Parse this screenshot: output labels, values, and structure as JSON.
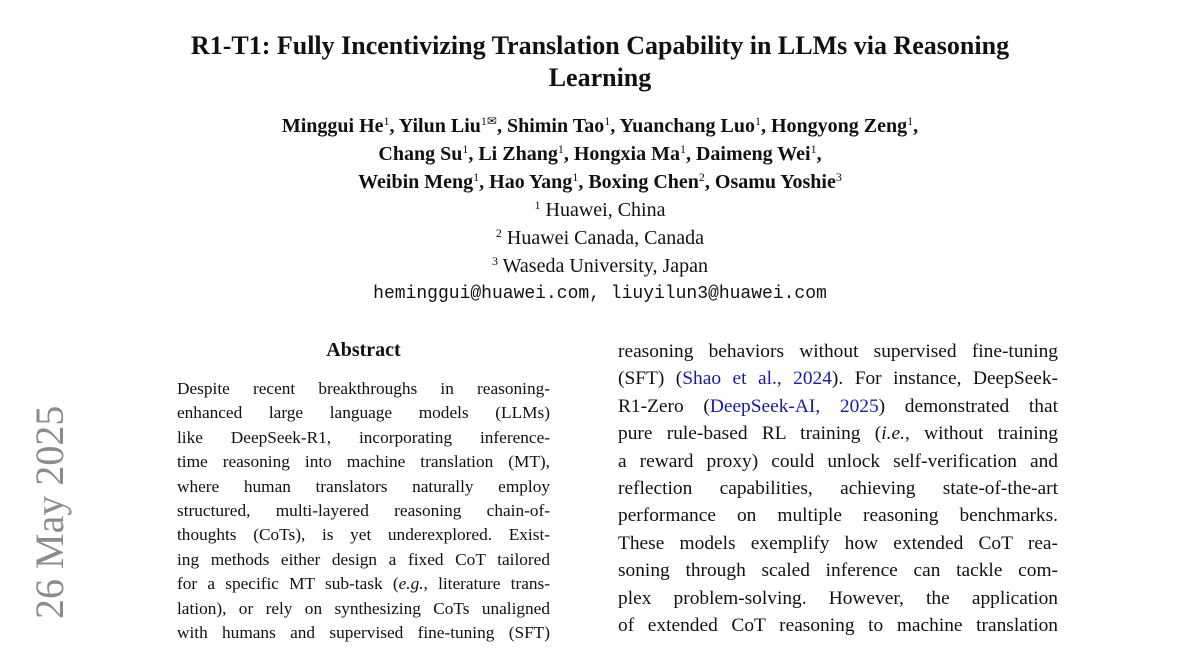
{
  "title_lines": [
    "R1-T1: Fully Incentivizing Translation Capability in LLMs via Reasoning",
    "Learning"
  ],
  "authors": [
    [
      {
        "n": "Minggui He",
        "s": "1"
      },
      {
        "n": "Yilun Liu",
        "s": "1✉"
      },
      {
        "n": "Shimin Tao",
        "s": "1"
      },
      {
        "n": "Yuanchang Luo",
        "s": "1"
      },
      {
        "n": "Hongyong Zeng",
        "s": "1"
      }
    ],
    [
      {
        "n": "Chang Su",
        "s": "1"
      },
      {
        "n": "Li Zhang",
        "s": "1"
      },
      {
        "n": "Hongxia Ma",
        "s": "1"
      },
      {
        "n": "Daimeng Wei",
        "s": "1"
      }
    ],
    [
      {
        "n": "Weibin Meng",
        "s": "1"
      },
      {
        "n": "Hao Yang",
        "s": "1"
      },
      {
        "n": "Boxing Chen",
        "s": "2"
      },
      {
        "n": "Osamu Yoshie",
        "s": "3"
      }
    ]
  ],
  "affiliations": [
    {
      "s": "1",
      "t": "Huawei, China"
    },
    {
      "s": "2",
      "t": "Huawei Canada, Canada"
    },
    {
      "s": "3",
      "t": "Waseda University, Japan"
    }
  ],
  "emails": "heminggui@huawei.com, liuyilun3@huawei.com",
  "abstract_heading": "Abstract",
  "abstract_lines": [
    "Despite recent breakthroughs in reasoning-",
    "enhanced large language models (LLMs)",
    "like DeepSeek-R1, incorporating inference-",
    "time reasoning into machine translation (MT),",
    "where human translators naturally employ",
    "structured, multi-layered reasoning chain-of-",
    "thoughts (CoTs), is yet underexplored. Exist-",
    "ing methods either design a fixed CoT tailored",
    "for a specific MT sub-task (e.g., literature trans-",
    "lation), or rely on synthesizing CoTs unaligned",
    "with humans and supervised fine-tuning (SFT)"
  ],
  "intro": {
    "l1": "reasoning behaviors without supervised fine-tuning",
    "l2a": "(SFT) (",
    "cite1": "Shao et al., 2024",
    "l2b": "). For instance, DeepSeek-",
    "l3a": "R1-Zero (",
    "cite2": "DeepSeek-AI, 2025",
    "l3b": ") demonstrated that",
    "l4a": "pure rule-based RL training (",
    "l4i": "i.e.",
    "l4b": ", without training",
    "rest": [
      "a reward proxy) could unlock self-verification and",
      "reflection capabilities, achieving state-of-the-art",
      "performance on multiple reasoning benchmarks.",
      "These models exemplify how extended CoT rea-",
      "soning through scaled inference can tackle com-",
      "plex problem-solving. However, the application",
      "of extended CoT reasoning to machine translation"
    ]
  },
  "arxiv_stamp": "26 May 2025",
  "colors": {
    "citation": "#1a1aa6",
    "stamp": "#8c8c8c"
  }
}
